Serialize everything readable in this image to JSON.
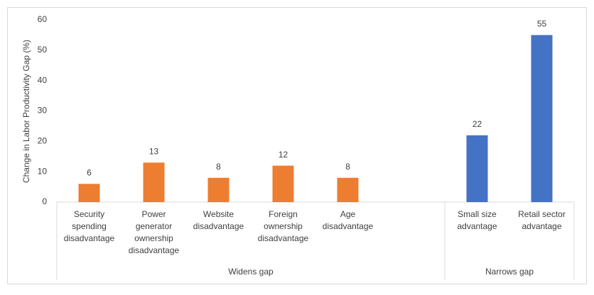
{
  "chart_data": {
    "type": "bar",
    "y_label": "Change in Labor Productivity Gap (%)",
    "categories": [
      "Security spending disadvantage",
      "Power generator ownership disadvantage",
      "Website disadvantage",
      "Foreign ownership disadvantage",
      "Age disadvantage",
      null,
      "Small size advantage",
      "Retail sector advantage"
    ],
    "values": [
      6,
      13,
      8,
      12,
      8,
      null,
      22,
      55
    ],
    "colors": [
      "#ed7d31",
      "#ed7d31",
      "#ed7d31",
      "#ed7d31",
      "#ed7d31",
      null,
      "#4472c4",
      "#4472c4"
    ],
    "groups": [
      {
        "name": "Widens gap",
        "start": 0,
        "end": 5
      },
      {
        "name": "Narrows gap",
        "start": 6,
        "end": 7
      }
    ],
    "ylim": [
      0,
      60
    ],
    "yticks": [
      0,
      10,
      20,
      30,
      40,
      50,
      60
    ],
    "grid": false
  }
}
